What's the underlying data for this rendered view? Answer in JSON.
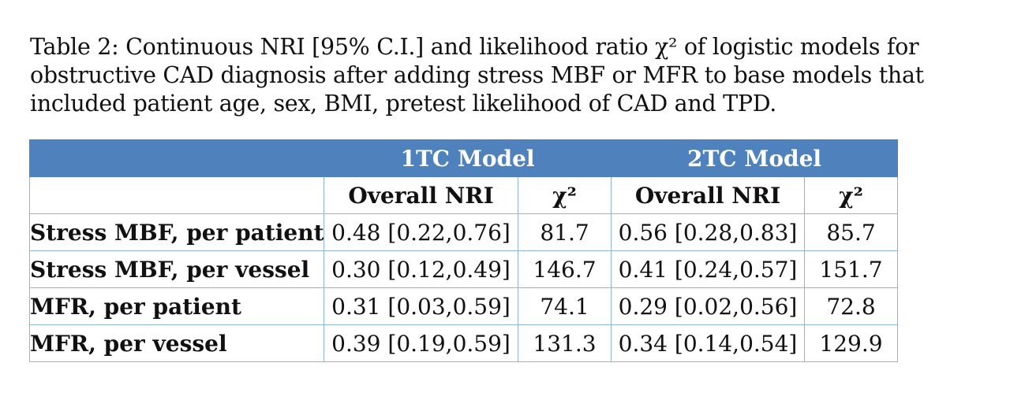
{
  "caption": "Table 2: Continuous NRI [95% C.I.] and likelihood ratio χ² of logistic models for obstructive CAD diagnosis after adding stress MBF or MFR to base models that included patient age, sex, BMI, pretest likelihood of CAD and TPD.",
  "table": {
    "groups": [
      "1TC Model",
      "2TC Model"
    ],
    "subheaders": [
      "Overall NRI",
      "χ²",
      "Overall NRI",
      "χ²"
    ],
    "rows": [
      {
        "label": "Stress MBF, per patient",
        "cells": [
          "0.48 [0.22,0.76]",
          "81.7",
          "0.56 [0.28,0.83]",
          "85.7"
        ]
      },
      {
        "label": "Stress MBF, per vessel",
        "cells": [
          "0.30 [0.12,0.49]",
          "146.7",
          "0.41 [0.24,0.57]",
          "151.7"
        ]
      },
      {
        "label": "MFR, per patient",
        "cells": [
          "0.31 [0.03,0.59]",
          "74.1",
          "0.29 [0.02,0.56]",
          "72.8"
        ]
      },
      {
        "label": "MFR, per vessel",
        "cells": [
          "0.39 [0.19,0.59]",
          "131.3",
          "0.34 [0.14,0.54]",
          "129.9"
        ]
      }
    ]
  },
  "colors": {
    "header_fill": "#4f81bd",
    "border": "#8eb4d8"
  }
}
